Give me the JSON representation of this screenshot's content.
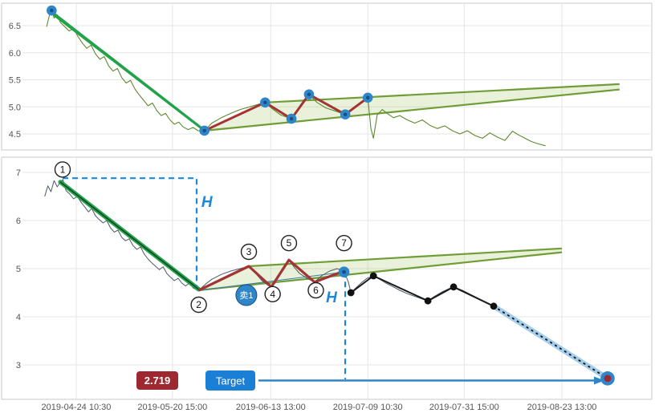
{
  "colors": {
    "grid": "#e5e5e5",
    "border": "#c9c9c9",
    "tick_text": "#555555",
    "price_top": "#5f8a2d",
    "price_main": "#4d5866",
    "trend_green": "#23a14b",
    "trend_core": "#123d1f",
    "wedge_line": "#6f9d36",
    "wedge_fill": "#a9c86e",
    "zigzag": "#a33434",
    "pivot_blue": "#2e86c8",
    "pivot_core": "#15507e",
    "dashed_blue": "#1d87d8",
    "projection_band": "#a3cdea",
    "arrow_blue": "#2e86c8",
    "dot_black": "#111111",
    "badge_red": "#9e2830",
    "badge_blue": "#1c7fd6",
    "circle_stroke": "#222222",
    "target_core": "#9e2830",
    "base_line": "#3a7ca5"
  },
  "chart_data": [
    {
      "type": "line",
      "panel": "overview",
      "ylim": [
        4.2,
        6.9
      ],
      "y_ticks": [
        {
          "v": 6.5,
          "label": "6.5"
        },
        {
          "v": 6.0,
          "label": "6.0"
        },
        {
          "v": 5.5,
          "label": "5.5"
        },
        {
          "v": 5.0,
          "label": "5.0"
        },
        {
          "v": 4.5,
          "label": "4.5"
        }
      ],
      "x_grid_f": [
        0.0833,
        0.237,
        0.394,
        0.549,
        0.703,
        0.859
      ],
      "price_series": [
        [
          0.036,
          6.48
        ],
        [
          0.041,
          6.72
        ],
        [
          0.044,
          6.78
        ],
        [
          0.048,
          6.64
        ],
        [
          0.053,
          6.7
        ],
        [
          0.058,
          6.56
        ],
        [
          0.065,
          6.48
        ],
        [
          0.072,
          6.4
        ],
        [
          0.079,
          6.45
        ],
        [
          0.086,
          6.3
        ],
        [
          0.093,
          6.18
        ],
        [
          0.1,
          6.08
        ],
        [
          0.107,
          6.14
        ],
        [
          0.114,
          5.98
        ],
        [
          0.121,
          5.88
        ],
        [
          0.128,
          5.93
        ],
        [
          0.135,
          5.76
        ],
        [
          0.142,
          5.66
        ],
        [
          0.149,
          5.71
        ],
        [
          0.156,
          5.54
        ],
        [
          0.163,
          5.44
        ],
        [
          0.17,
          5.49
        ],
        [
          0.177,
          5.33
        ],
        [
          0.184,
          5.22
        ],
        [
          0.191,
          5.12
        ],
        [
          0.198,
          5.02
        ],
        [
          0.205,
          5.07
        ],
        [
          0.212,
          4.93
        ],
        [
          0.219,
          4.84
        ],
        [
          0.226,
          4.88
        ],
        [
          0.233,
          4.76
        ],
        [
          0.24,
          4.68
        ],
        [
          0.247,
          4.72
        ],
        [
          0.254,
          4.63
        ],
        [
          0.262,
          4.58
        ],
        [
          0.27,
          4.62
        ],
        [
          0.278,
          4.56
        ],
        [
          0.288,
          4.56
        ],
        [
          0.3,
          4.7
        ],
        [
          0.315,
          4.8
        ],
        [
          0.33,
          4.88
        ],
        [
          0.345,
          4.95
        ],
        [
          0.36,
          5.0
        ],
        [
          0.375,
          5.05
        ],
        [
          0.385,
          5.08
        ],
        [
          0.398,
          4.95
        ],
        [
          0.41,
          4.85
        ],
        [
          0.427,
          4.78
        ],
        [
          0.44,
          4.98
        ],
        [
          0.455,
          5.23
        ],
        [
          0.468,
          5.08
        ],
        [
          0.482,
          4.98
        ],
        [
          0.498,
          4.92
        ],
        [
          0.513,
          4.86
        ],
        [
          0.53,
          5.02
        ],
        [
          0.549,
          5.17
        ],
        [
          0.554,
          4.6
        ],
        [
          0.558,
          4.42
        ],
        [
          0.564,
          4.85
        ],
        [
          0.572,
          4.95
        ],
        [
          0.58,
          4.88
        ],
        [
          0.59,
          4.8
        ],
        [
          0.6,
          4.84
        ],
        [
          0.612,
          4.76
        ],
        [
          0.624,
          4.7
        ],
        [
          0.636,
          4.76
        ],
        [
          0.648,
          4.66
        ],
        [
          0.66,
          4.6
        ],
        [
          0.672,
          4.65
        ],
        [
          0.684,
          4.56
        ],
        [
          0.696,
          4.5
        ],
        [
          0.708,
          4.56
        ],
        [
          0.72,
          4.47
        ],
        [
          0.732,
          4.42
        ],
        [
          0.744,
          4.52
        ],
        [
          0.756,
          4.44
        ],
        [
          0.768,
          4.38
        ],
        [
          0.78,
          4.55
        ],
        [
          0.79,
          4.48
        ],
        [
          0.8,
          4.42
        ],
        [
          0.81,
          4.36
        ],
        [
          0.82,
          4.32
        ],
        [
          0.833,
          4.28
        ]
      ],
      "channel_lines": [
        [
          [
            0.04,
            6.8
          ],
          [
            0.285,
            4.6
          ]
        ],
        [
          [
            0.047,
            6.7
          ],
          [
            0.29,
            4.54
          ]
        ]
      ],
      "wedge": {
        "upper": [
          [
            0.385,
            5.08
          ],
          [
            0.951,
            5.42
          ]
        ],
        "lower": [
          [
            0.288,
            4.56
          ],
          [
            0.951,
            5.32
          ]
        ]
      },
      "zigzag": [
        [
          0.288,
          4.56
        ],
        [
          0.385,
          5.08
        ],
        [
          0.427,
          4.78
        ],
        [
          0.455,
          5.23
        ],
        [
          0.513,
          4.86
        ],
        [
          0.549,
          5.17
        ]
      ],
      "pivot_dots": [
        [
          0.044,
          6.78
        ],
        [
          0.288,
          4.56
        ],
        [
          0.385,
          5.08
        ],
        [
          0.427,
          4.78
        ],
        [
          0.455,
          5.23
        ],
        [
          0.513,
          4.86
        ],
        [
          0.549,
          5.17
        ]
      ]
    },
    {
      "type": "line",
      "panel": "main",
      "ylim": [
        2.4,
        7.2
      ],
      "y_ticks": [
        {
          "v": 7,
          "label": "7"
        },
        {
          "v": 6,
          "label": "6"
        },
        {
          "v": 5,
          "label": "5"
        },
        {
          "v": 4,
          "label": "4"
        },
        {
          "v": 3,
          "label": "3"
        }
      ],
      "x_ticks": [
        {
          "f": 0.0833,
          "label": "2019-04-24 10:30"
        },
        {
          "f": 0.237,
          "label": "2019-05-20 15:00"
        },
        {
          "f": 0.394,
          "label": "2019-06-13 13:00"
        },
        {
          "f": 0.549,
          "label": "2019-07-09 10:30"
        },
        {
          "f": 0.703,
          "label": "2019-07-31 15:00"
        },
        {
          "f": 0.859,
          "label": "2019-08-23 13:00"
        }
      ],
      "price_series": [
        [
          0.033,
          6.5
        ],
        [
          0.038,
          6.72
        ],
        [
          0.043,
          6.6
        ],
        [
          0.048,
          6.83
        ],
        [
          0.053,
          6.7
        ],
        [
          0.058,
          6.8
        ],
        [
          0.062,
          6.85
        ],
        [
          0.067,
          6.62
        ],
        [
          0.073,
          6.55
        ],
        [
          0.079,
          6.45
        ],
        [
          0.085,
          6.5
        ],
        [
          0.091,
          6.38
        ],
        [
          0.097,
          6.28
        ],
        [
          0.103,
          6.18
        ],
        [
          0.108,
          6.25
        ],
        [
          0.114,
          6.1
        ],
        [
          0.12,
          6.02
        ],
        [
          0.126,
          5.95
        ],
        [
          0.132,
          6.0
        ],
        [
          0.138,
          5.85
        ],
        [
          0.144,
          5.76
        ],
        [
          0.15,
          5.8
        ],
        [
          0.156,
          5.65
        ],
        [
          0.162,
          5.58
        ],
        [
          0.168,
          5.62
        ],
        [
          0.174,
          5.48
        ],
        [
          0.18,
          5.4
        ],
        [
          0.186,
          5.45
        ],
        [
          0.192,
          5.3
        ],
        [
          0.198,
          5.2
        ],
        [
          0.204,
          5.12
        ],
        [
          0.21,
          5.05
        ],
        [
          0.216,
          4.98
        ],
        [
          0.222,
          5.04
        ],
        [
          0.228,
          4.9
        ],
        [
          0.234,
          4.82
        ],
        [
          0.24,
          4.75
        ],
        [
          0.246,
          4.8
        ],
        [
          0.252,
          4.7
        ],
        [
          0.258,
          4.64
        ],
        [
          0.264,
          4.7
        ],
        [
          0.27,
          4.6
        ],
        [
          0.276,
          4.56
        ],
        [
          0.279,
          4.55
        ],
        [
          0.29,
          4.68
        ],
        [
          0.3,
          4.78
        ],
        [
          0.315,
          4.88
        ],
        [
          0.33,
          4.95
        ],
        [
          0.345,
          5.0
        ],
        [
          0.359,
          5.05
        ],
        [
          0.37,
          4.9
        ],
        [
          0.38,
          4.75
        ],
        [
          0.39,
          4.65
        ],
        [
          0.395,
          4.62
        ],
        [
          0.405,
          4.85
        ],
        [
          0.415,
          5.05
        ],
        [
          0.423,
          5.18
        ],
        [
          0.432,
          5.02
        ],
        [
          0.44,
          4.9
        ],
        [
          0.452,
          4.8
        ],
        [
          0.464,
          4.72
        ],
        [
          0.475,
          4.85
        ],
        [
          0.488,
          4.95
        ],
        [
          0.5,
          5.0
        ],
        [
          0.511,
          4.95
        ],
        [
          0.518,
          4.72
        ],
        [
          0.522,
          4.5
        ],
        [
          0.53,
          4.6
        ],
        [
          0.54,
          4.72
        ],
        [
          0.548,
          4.8
        ],
        [
          0.558,
          4.85
        ],
        [
          0.568,
          4.78
        ],
        [
          0.578,
          4.7
        ],
        [
          0.59,
          4.62
        ],
        [
          0.6,
          4.55
        ],
        [
          0.612,
          4.48
        ],
        [
          0.625,
          4.42
        ],
        [
          0.638,
          4.36
        ],
        [
          0.645,
          4.33
        ],
        [
          0.655,
          4.42
        ],
        [
          0.668,
          4.52
        ],
        [
          0.678,
          4.58
        ],
        [
          0.686,
          4.62
        ],
        [
          0.7,
          4.55
        ],
        [
          0.715,
          4.45
        ],
        [
          0.73,
          4.35
        ],
        [
          0.74,
          4.28
        ],
        [
          0.75,
          4.22
        ]
      ],
      "trend_line": [
        [
          0.058,
          6.8
        ],
        [
          0.279,
          4.57
        ]
      ],
      "base_line": [
        [
          0.279,
          4.55
        ],
        [
          0.511,
          4.93
        ]
      ],
      "wedge": {
        "upper": [
          [
            0.359,
            5.05
          ],
          [
            0.859,
            5.42
          ]
        ],
        "lower": [
          [
            0.279,
            4.55
          ],
          [
            0.859,
            5.34
          ]
        ]
      },
      "zigzag": [
        [
          0.279,
          4.55
        ],
        [
          0.359,
          5.05
        ],
        [
          0.395,
          4.62
        ],
        [
          0.423,
          5.18
        ],
        [
          0.464,
          4.72
        ],
        [
          0.511,
          4.95
        ]
      ],
      "measure_lines": [
        [
          [
            0.0615,
            6.88
          ],
          [
            0.2756,
            6.88
          ],
          [
            0.2756,
            4.62
          ]
        ],
        [
          [
            0.513,
            4.93
          ],
          [
            0.513,
            2.7
          ]
        ]
      ],
      "h_labels": [
        {
          "text": "H",
          "f": 0.292,
          "v": 6.28
        },
        {
          "text": "H",
          "f": 0.491,
          "v": 4.3
        }
      ],
      "wave_labels": [
        {
          "n": "1",
          "f": 0.0615,
          "v": 7.06
        },
        {
          "n": "2",
          "f": 0.279,
          "v": 4.25
        },
        {
          "n": "3",
          "f": 0.359,
          "v": 5.35
        },
        {
          "n": "4",
          "f": 0.397,
          "v": 4.47
        },
        {
          "n": "5",
          "f": 0.423,
          "v": 5.53
        },
        {
          "n": "6",
          "f": 0.466,
          "v": 4.55
        },
        {
          "n": "7",
          "f": 0.511,
          "v": 5.53
        }
      ],
      "sell_marker": {
        "label": "卖1",
        "f": 0.355,
        "v": 4.45
      },
      "projection": [
        [
          0.75,
          4.22
        ],
        [
          0.932,
          2.719
        ]
      ],
      "projection_dots": [
        [
          0.522,
          4.5
        ],
        [
          0.558,
          4.85
        ],
        [
          0.645,
          4.33
        ],
        [
          0.686,
          4.62
        ],
        [
          0.75,
          4.22
        ]
      ],
      "pivot7_dot": [
        0.511,
        4.93
      ],
      "target_marker": {
        "f": 0.932,
        "v": 2.719
      },
      "price_badge": {
        "label": "2.719"
      },
      "target_badge": {
        "label": "Target"
      }
    }
  ]
}
